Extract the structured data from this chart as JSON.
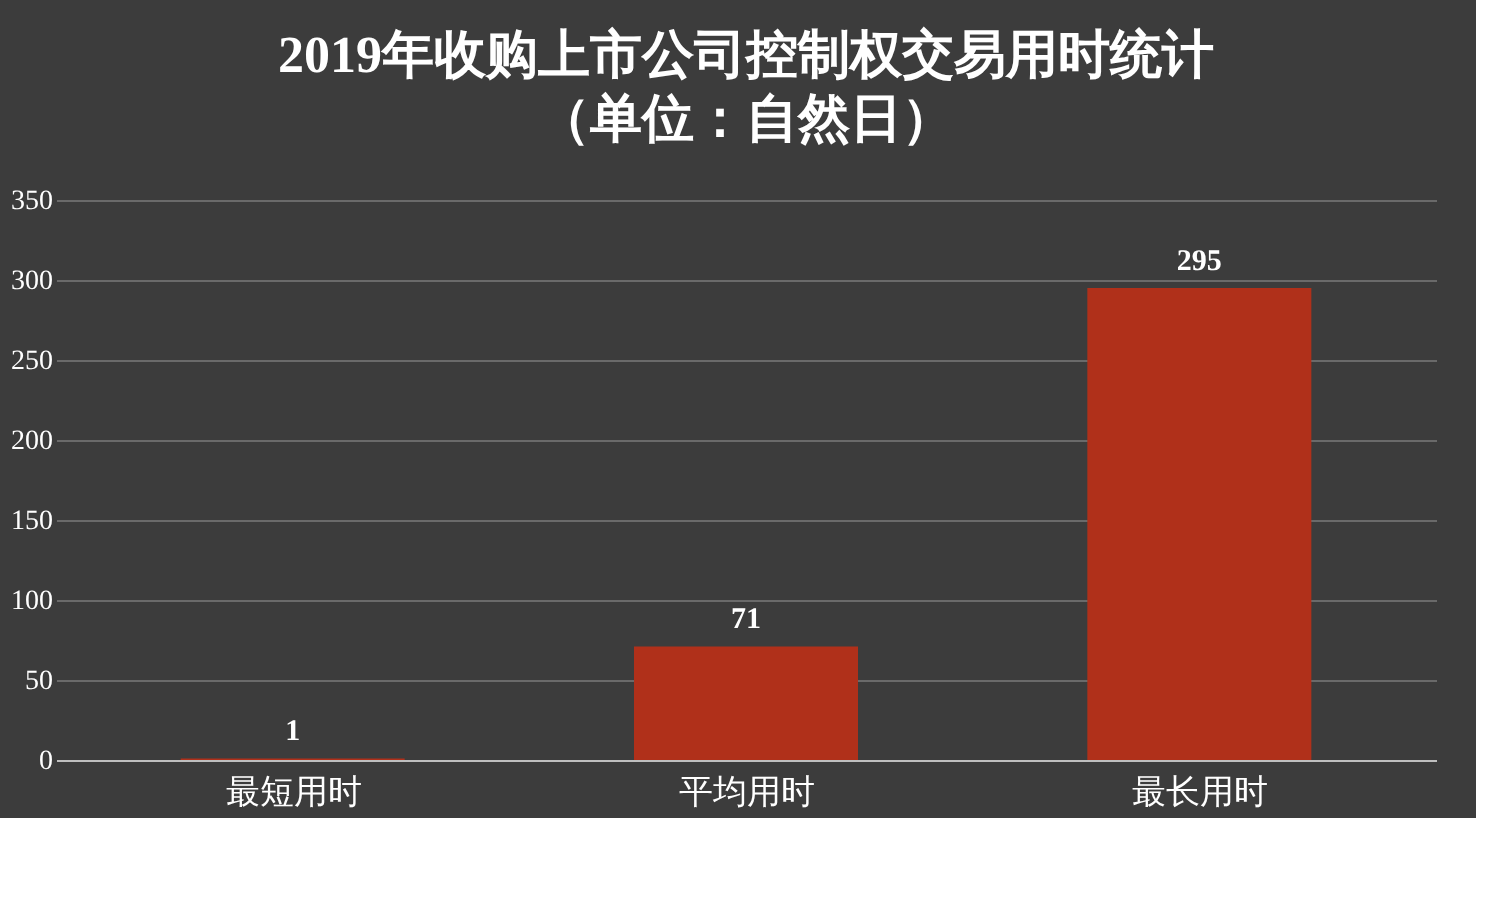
{
  "chart_data": {
    "type": "bar",
    "title": "2019年收购上市公司控制权交易用时统计",
    "subtitle": "（单位：自然日）",
    "categories": [
      "最短用时",
      "平均用时",
      "最长用时"
    ],
    "values": [
      1,
      71,
      295
    ],
    "color": "#b0301a",
    "ylim": [
      0,
      350
    ],
    "yticks": [
      0,
      50,
      100,
      150,
      200,
      250,
      300,
      350
    ],
    "grid": "y",
    "data_labels": true
  }
}
